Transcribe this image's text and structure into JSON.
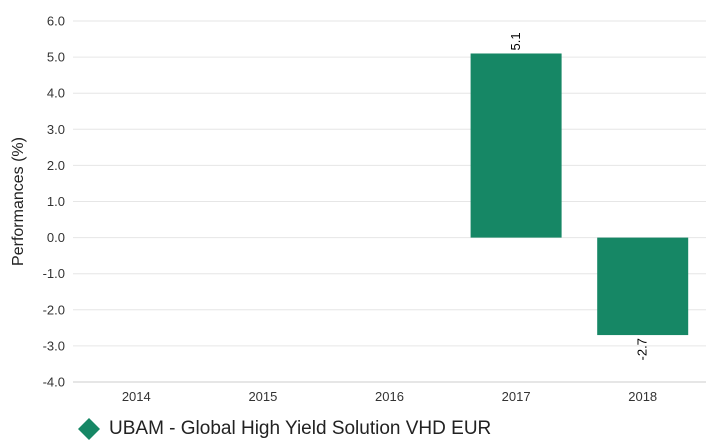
{
  "chart_data": {
    "type": "bar",
    "categories": [
      "2014",
      "2015",
      "2016",
      "2017",
      "2018"
    ],
    "series": [
      {
        "name": "UBAM - Global High Yield Solution VHD EUR",
        "values": [
          null,
          null,
          null,
          5.1,
          -2.7
        ],
        "data_labels": [
          "",
          "",
          "",
          "5.1",
          "-2.7"
        ],
        "color": "#168765"
      }
    ],
    "ylabel": "Performances (%)",
    "xlabel": "",
    "title": "",
    "ylim": [
      -4.0,
      6.0
    ],
    "yticks": [
      "-4.0",
      "-3.0",
      "-2.0",
      "-1.0",
      "0.0",
      "1.0",
      "2.0",
      "3.0",
      "4.0",
      "5.0",
      "6.0"
    ],
    "grid": true,
    "legend_position": "bottom-left"
  }
}
